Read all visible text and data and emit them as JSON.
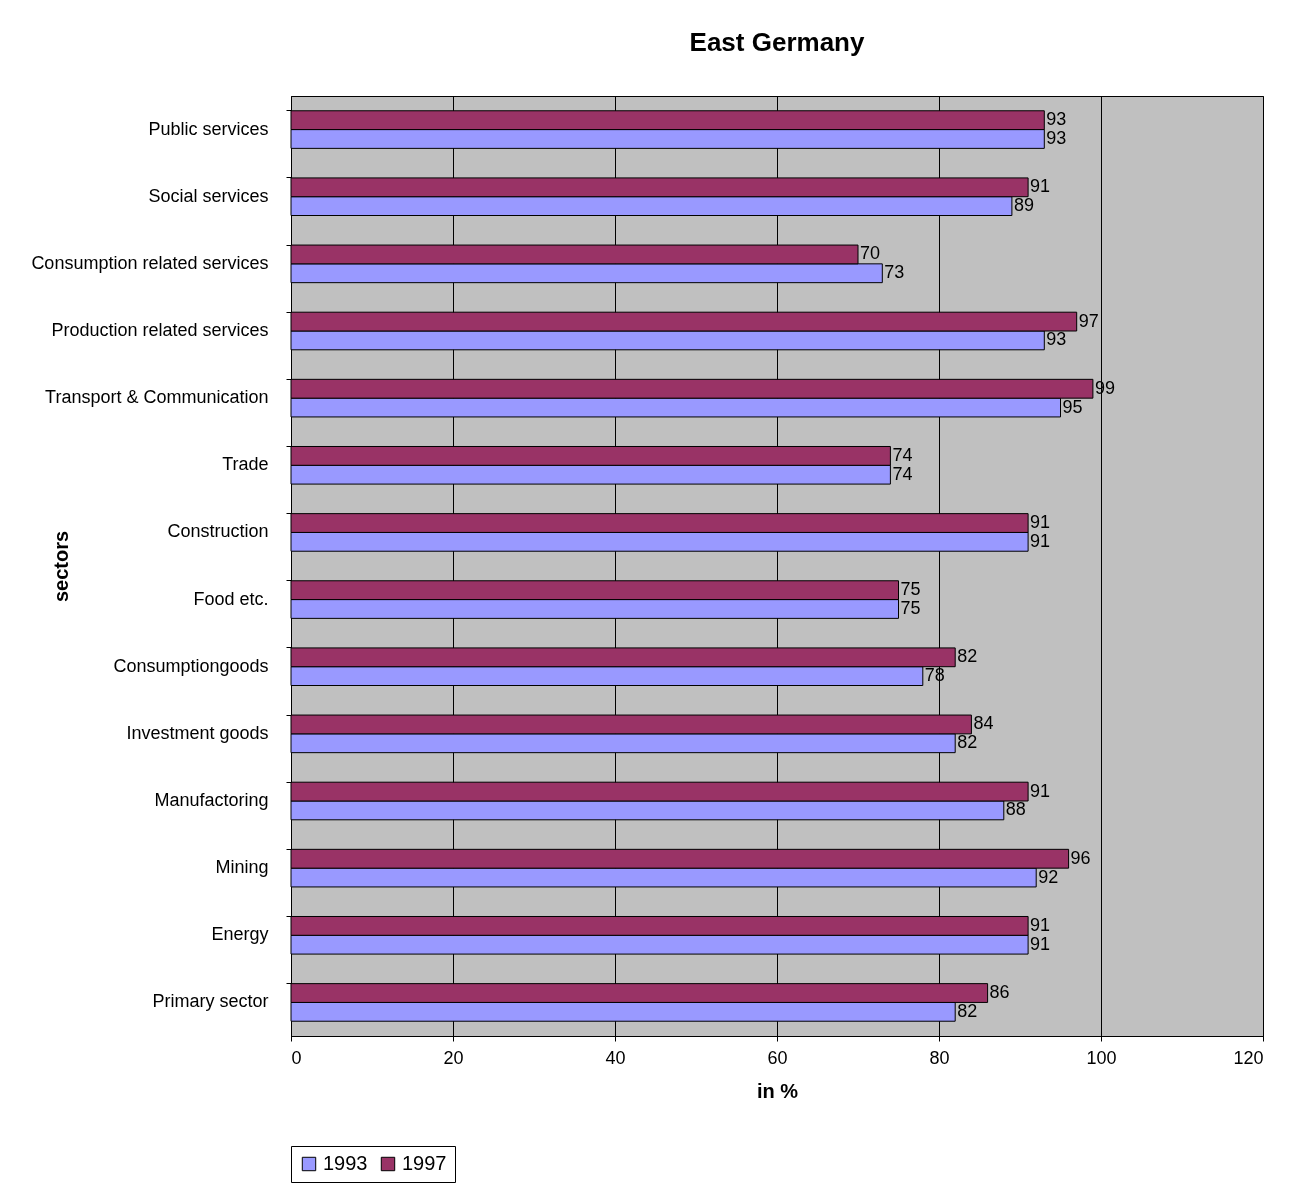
{
  "chart_data": {
    "type": "bar",
    "orientation": "horizontal",
    "title": "East Germany",
    "xlabel": "in %",
    "ylabel": "sectors",
    "categories": [
      "Public services",
      "Social services",
      "Consumption related services",
      "Production related services",
      "Transport & Communication",
      "Trade",
      "Construction",
      "Food etc.",
      "Consumptiongoods",
      "Investment goods",
      "Manufactoring",
      "Mining",
      "Energy",
      "Primary sector"
    ],
    "series": [
      {
        "name": "1993",
        "color": "#9999ff",
        "values": [
          93,
          89,
          73,
          93,
          95,
          74,
          91,
          75,
          78,
          82,
          88,
          92,
          91,
          82
        ]
      },
      {
        "name": "1997",
        "color": "#993366",
        "values": [
          93,
          91,
          70,
          97,
          99,
          74,
          91,
          75,
          82,
          84,
          91,
          96,
          91,
          86
        ]
      }
    ],
    "xlim": [
      0,
      120
    ],
    "xticks": [
      0,
      20,
      40,
      60,
      80,
      100,
      120
    ],
    "grid": "x",
    "legend": "bottom",
    "data_labels": true
  }
}
